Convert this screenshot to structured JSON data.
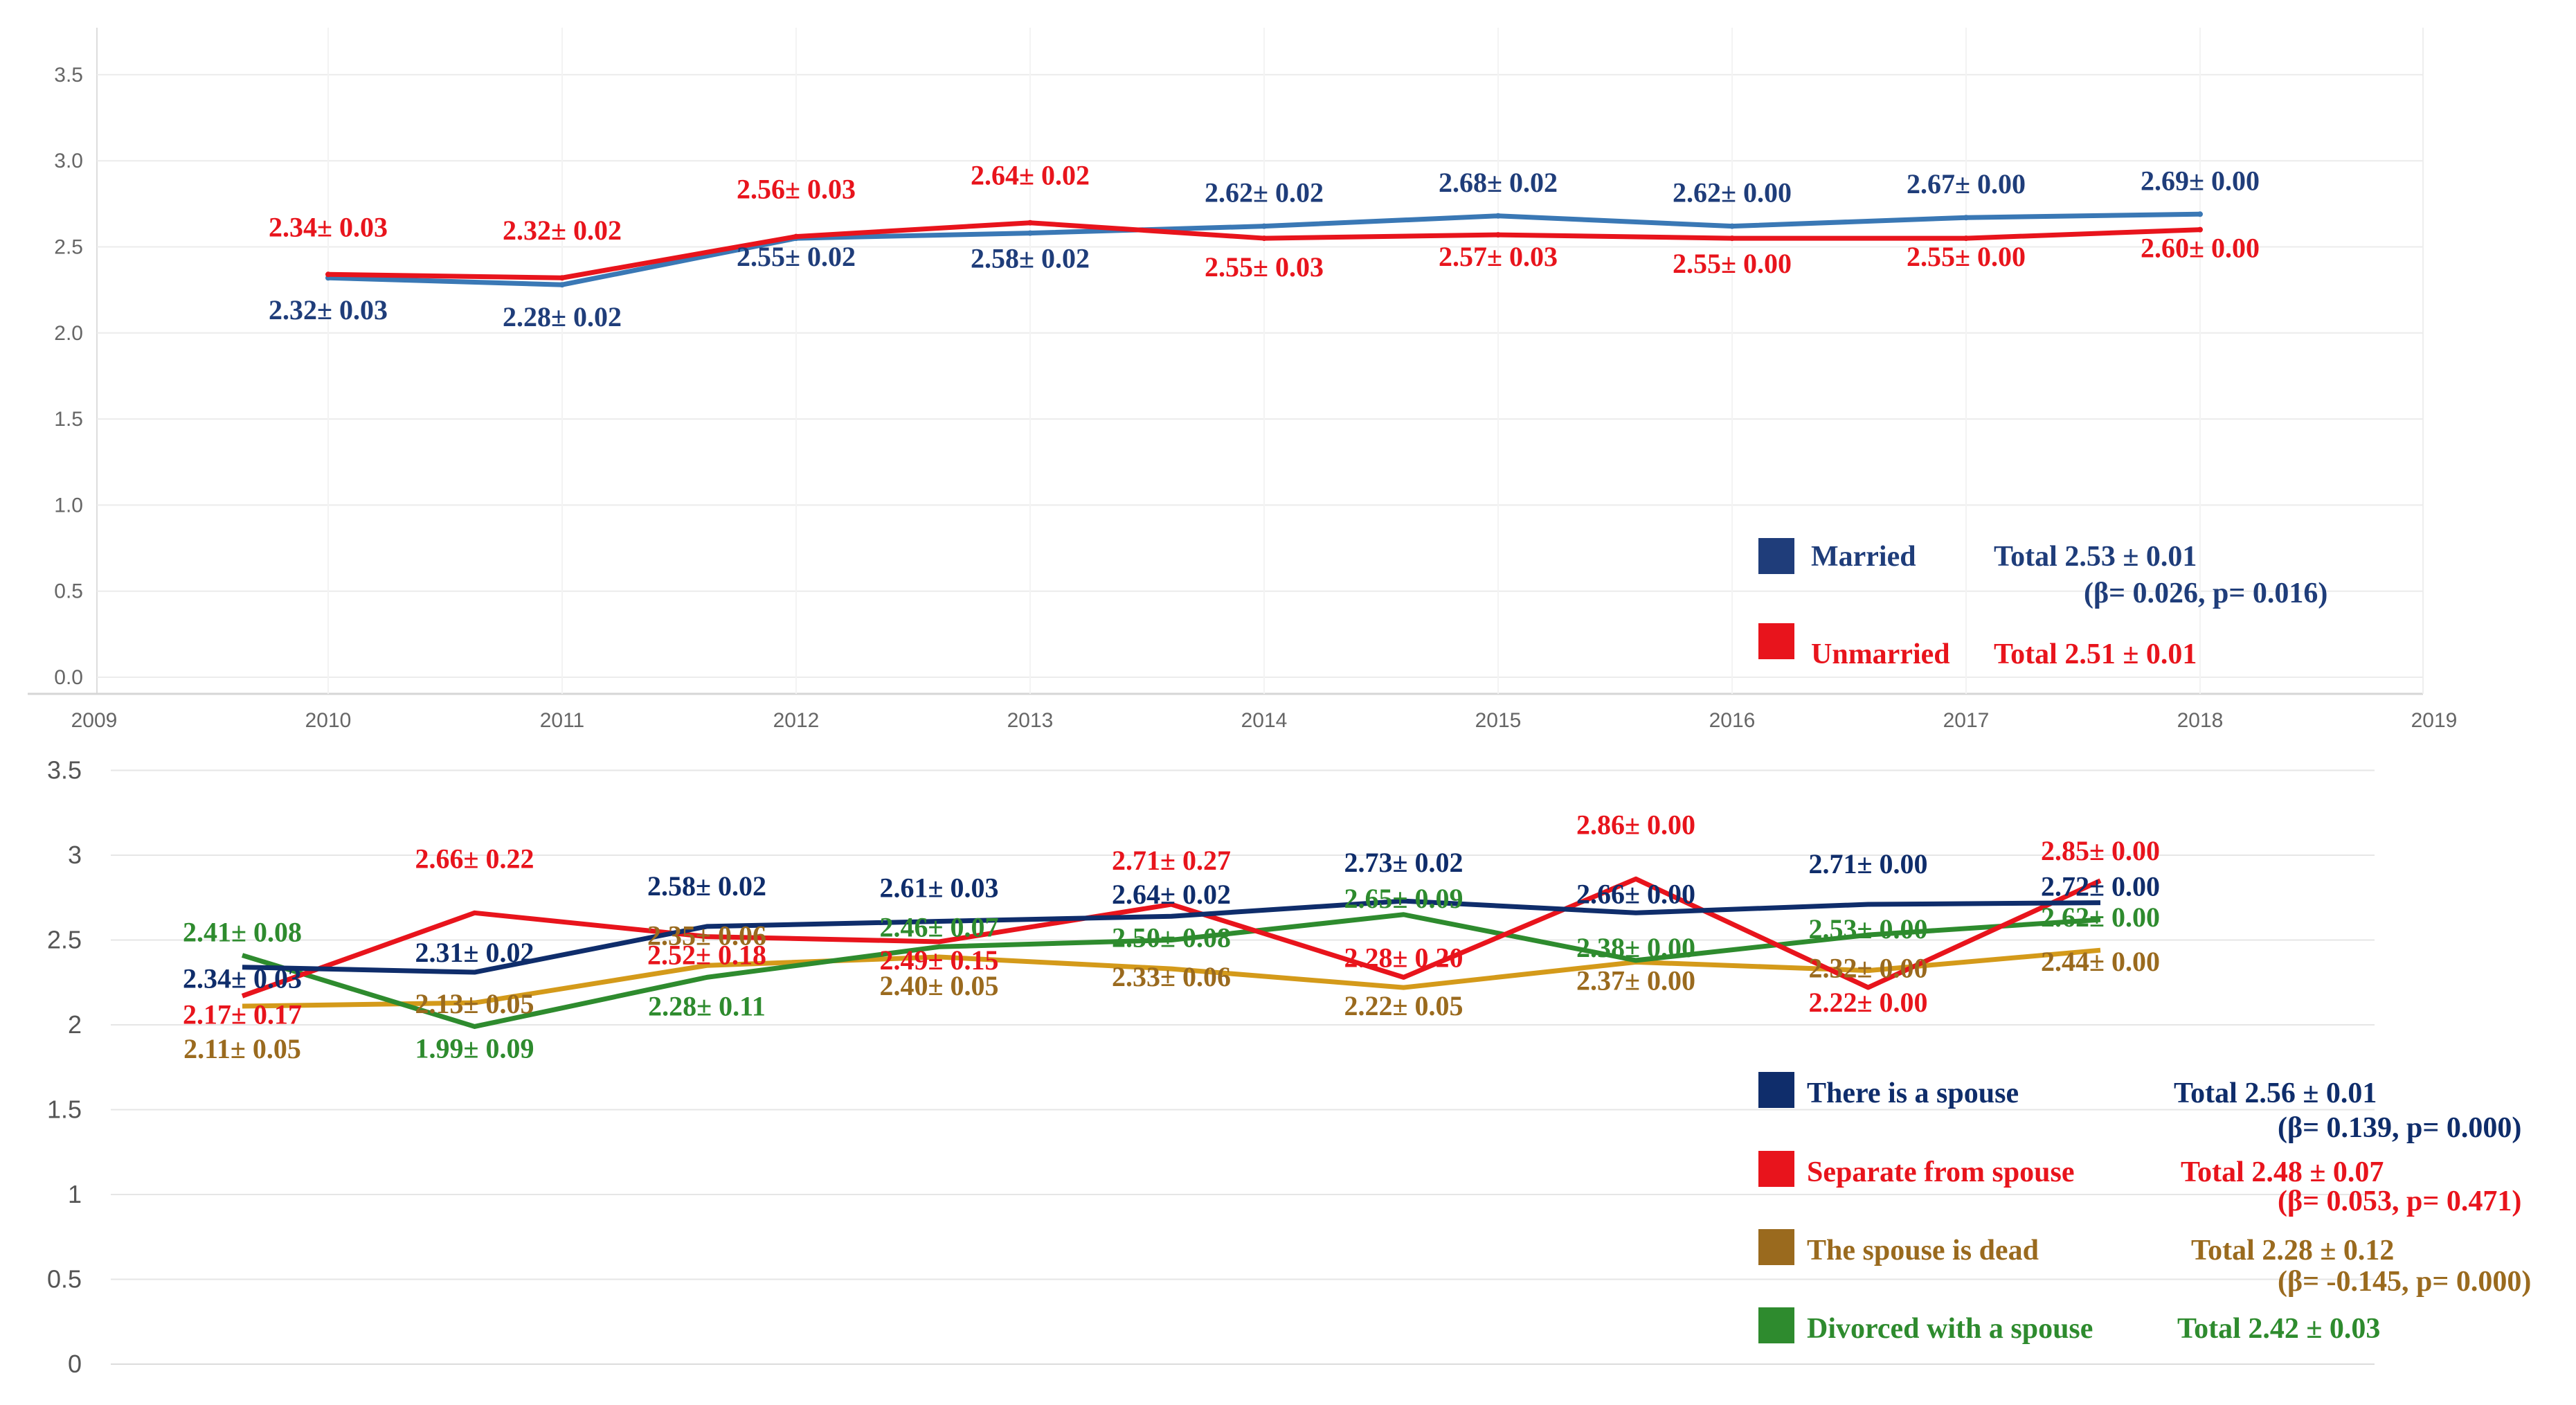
{
  "colors": {
    "married": "#1f3d7a",
    "married_line": "#3a78b5",
    "unmarried": "#e8141c",
    "spouse": "#0f2d6b",
    "separate": "#e8141c",
    "dead": "#9a6a1e",
    "dead_line": "#d49a1a",
    "divorced": "#2e8b2e"
  },
  "chart_data": [
    {
      "type": "line",
      "x": [
        2010,
        2011,
        2012,
        2013,
        2014,
        2015,
        2016,
        2017,
        2018
      ],
      "xlim": [
        2009,
        2019
      ],
      "x_tick_labels": [
        "2009",
        "2010",
        "2011",
        "2012",
        "2013",
        "2014",
        "2015",
        "2016",
        "2017",
        "2018",
        "2019"
      ],
      "ylim": [
        0,
        3.5
      ],
      "y_tick_labels": [
        "0.0",
        "0.5",
        "1.0",
        "1.5",
        "2.0",
        "2.5",
        "3.0",
        "3.5"
      ],
      "grid": true,
      "legend_position": "bottom-right",
      "series": [
        {
          "name": "Married",
          "values": [
            2.32,
            2.28,
            2.55,
            2.58,
            2.62,
            2.68,
            2.62,
            2.67,
            2.69
          ],
          "labels": [
            "2.32± 0.03",
            "2.28± 0.02",
            "2.55± 0.02",
            "2.58± 0.02",
            "2.62± 0.02",
            "2.68± 0.02",
            "2.62± 0.00",
            "2.67± 0.00",
            "2.69± 0.00"
          ],
          "legend_label": "Married",
          "total_text": "Total   2.53 ± 0.01",
          "beta_text": "(β= 0.026, p= 0.016)"
        },
        {
          "name": "Unmarried",
          "values": [
            2.34,
            2.32,
            2.56,
            2.64,
            2.55,
            2.57,
            2.55,
            2.55,
            2.6
          ],
          "labels": [
            "2.34± 0.03",
            "2.32± 0.02",
            "2.56± 0.03",
            "2.64± 0.02",
            "2.55± 0.03",
            "2.57± 0.03",
            "2.55± 0.00",
            "2.55± 0.00",
            "2.60± 0.00"
          ],
          "legend_label": "Unmarried",
          "total_text": "Total   2.51 ± 0.01"
        }
      ]
    },
    {
      "type": "line",
      "x": [
        2010,
        2011,
        2012,
        2013,
        2014,
        2015,
        2016,
        2017,
        2018
      ],
      "ylim": [
        0,
        3.5
      ],
      "y_tick_labels": [
        "0",
        "0.5",
        "1",
        "1.5",
        "2",
        "2.5",
        "3",
        "3.5"
      ],
      "grid": true,
      "legend_position": "bottom-right",
      "series": [
        {
          "name": "There is a spouse",
          "values": [
            2.34,
            2.31,
            2.58,
            2.61,
            2.64,
            2.73,
            2.66,
            2.71,
            2.72
          ],
          "labels": [
            "2.34± 0.03",
            "2.31± 0.02",
            "2.58± 0.02",
            "2.61± 0.03",
            "2.64± 0.02",
            "2.73± 0.02",
            "2.66± 0.00",
            "2.71± 0.00",
            "2.72± 0.00"
          ],
          "legend_label": "There is a spouse",
          "total_text": "Total   2.56 ± 0.01",
          "beta_text": "(β= 0.139, p= 0.000)"
        },
        {
          "name": "Separate from spouse",
          "values": [
            2.17,
            2.66,
            2.52,
            2.49,
            2.71,
            2.28,
            2.86,
            2.22,
            2.85
          ],
          "labels": [
            "2.17± 0.17",
            "2.66± 0.22",
            "2.52± 0.18",
            "2.49± 0.15",
            "2.71± 0.27",
            "2.28± 0.20",
            "2.86± 0.00",
            "2.22± 0.00",
            "2.85± 0.00"
          ],
          "legend_label": "Separate from spouse",
          "total_text": "Total   2.48 ± 0.07",
          "beta_text": "(β= 0.053, p= 0.471)"
        },
        {
          "name": "The spouse is dead",
          "values": [
            2.11,
            2.13,
            2.35,
            2.4,
            2.33,
            2.22,
            2.37,
            2.32,
            2.44
          ],
          "labels": [
            "2.11± 0.05",
            "2.13± 0.05",
            "2.35± 0.06",
            "2.40± 0.05",
            "2.33± 0.06",
            "2.22± 0.05",
            "2.37± 0.00",
            "2.32± 0.00",
            "2.44± 0.00"
          ],
          "legend_label": "The spouse is dead",
          "total_text": "Total   2.28 ± 0.12",
          "beta_text": "(β= -0.145, p= 0.000)"
        },
        {
          "name": "Divorced with a spouse",
          "values": [
            2.41,
            1.99,
            2.28,
            2.46,
            2.5,
            2.65,
            2.38,
            2.53,
            2.62
          ],
          "labels": [
            "2.41± 0.08",
            "1.99± 0.09",
            "2.28± 0.11",
            "2.46± 0.07",
            "2.50± 0.08",
            "2.65± 0.09",
            "2.38± 0.00",
            "2.53± 0.00",
            "2.62± 0.00"
          ],
          "legend_label": "Divorced with a spouse",
          "total_text": "Total   2.42 ± 0.03"
        }
      ]
    }
  ]
}
